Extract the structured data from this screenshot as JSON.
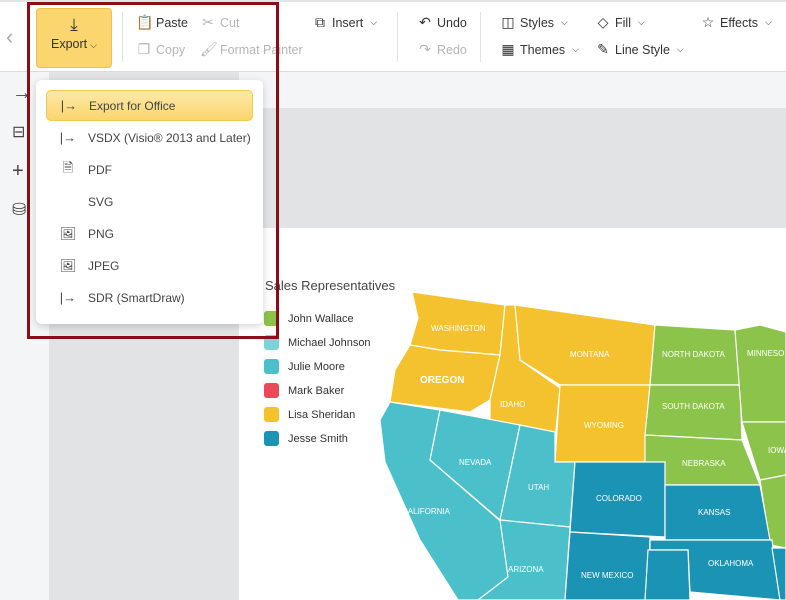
{
  "ribbon": {
    "export": "Export",
    "paste": "Paste",
    "cut": "Cut",
    "copy": "Copy",
    "format_painter": "Format Painter",
    "insert": "Insert",
    "undo": "Undo",
    "redo": "Redo",
    "styles": "Styles",
    "themes": "Themes",
    "fill": "Fill",
    "line_style": "Line Style",
    "effects": "Effects"
  },
  "export_menu": [
    {
      "label": "Export for Office",
      "icon": "export-arrow-icon",
      "selected": true
    },
    {
      "label": "VSDX (Visio® 2013 and Later)",
      "icon": "export-arrow-icon"
    },
    {
      "label": "PDF",
      "icon": "pdf-file-icon"
    },
    {
      "label": "SVG",
      "icon": "code-icon"
    },
    {
      "label": "PNG",
      "icon": "image-icon"
    },
    {
      "label": "JPEG",
      "icon": "image-icon"
    },
    {
      "label": "SDR (SmartDraw)",
      "icon": "export-arrow-icon"
    }
  ],
  "legend": {
    "title": "Sales Representatives",
    "items": [
      {
        "name": "John Wallace",
        "color": "#8cc34b"
      },
      {
        "name": "Michael Johnson",
        "color": "#7dd1d9"
      },
      {
        "name": "Julie Moore",
        "color": "#4bc0ca"
      },
      {
        "name": "Mark Baker",
        "color": "#e84a57"
      },
      {
        "name": "Lisa Sheridan",
        "color": "#f5c22f"
      },
      {
        "name": "Jesse Smith",
        "color": "#1a93b5"
      }
    ]
  },
  "states": {
    "washington": "WASHINGTON",
    "oregon": "OREGON",
    "idaho": "IDAHO",
    "montana": "MONTANA",
    "wyoming": "WYOMING",
    "north_dakota": "NORTH DAKOTA",
    "south_dakota": "SOUTH DAKOTA",
    "nebraska": "NEBRASKA",
    "minnesota": "MINNESO",
    "iowa": "IOWA",
    "california": "CALIFORNIA",
    "nevada": "NEVADA",
    "utah": "UTAH",
    "arizona": "ARIZONA",
    "colorado": "COLORADO",
    "new_mexico": "NEW MEXICO",
    "kansas": "KANSAS",
    "oklahoma": "OKLAHOMA"
  }
}
